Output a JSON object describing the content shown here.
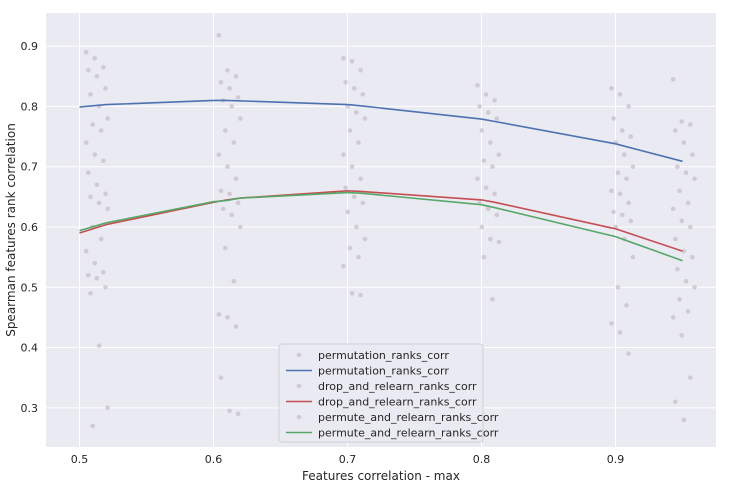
{
  "chart_data": {
    "type": "line",
    "title": "",
    "xlabel": "Features correlation - max",
    "ylabel": "Spearman features rank correlation",
    "xlim": [
      0.475,
      0.975
    ],
    "ylim": [
      0.235,
      0.955
    ],
    "xticks": [
      0.5,
      0.6,
      0.7,
      0.8,
      0.9
    ],
    "yticks": [
      0.3,
      0.4,
      0.5,
      0.6,
      0.7,
      0.8,
      0.9
    ],
    "xtick_labels": [
      "0.5",
      "0.6",
      "0.7",
      "0.8",
      "0.9"
    ],
    "ytick_labels": [
      "0.3",
      "0.4",
      "0.5",
      "0.6",
      "0.7",
      "0.8",
      "0.9"
    ],
    "grid": true,
    "legend_position": "lower center",
    "colors": {
      "background": "#EAEAF2",
      "grid": "#FFFFFF",
      "scatter": "#C8BFCB",
      "permutation": "#4C72B0",
      "drop_and_relearn": "#C44E52",
      "permute_and_relearn": "#55A868"
    },
    "series": [
      {
        "name": "permutation_ranks_corr",
        "kind": "line",
        "color_key": "permutation",
        "x": [
          0.5,
          0.52,
          0.6,
          0.61,
          0.7,
          0.71,
          0.8,
          0.81,
          0.9,
          0.95
        ],
        "y": [
          0.799,
          0.803,
          0.81,
          0.81,
          0.803,
          0.801,
          0.779,
          0.775,
          0.738,
          0.709
        ]
      },
      {
        "name": "drop_and_relearn_ranks_corr",
        "kind": "line",
        "color_key": "drop_and_relearn",
        "x": [
          0.5,
          0.52,
          0.6,
          0.61,
          0.62,
          0.7,
          0.71,
          0.8,
          0.81,
          0.9,
          0.95
        ],
        "y": [
          0.59,
          0.604,
          0.641,
          0.645,
          0.648,
          0.66,
          0.659,
          0.645,
          0.641,
          0.597,
          0.56
        ]
      },
      {
        "name": "permute_and_relearn_ranks_corr",
        "kind": "line",
        "color_key": "permute_and_relearn",
        "x": [
          0.5,
          0.52,
          0.6,
          0.61,
          0.62,
          0.7,
          0.71,
          0.8,
          0.81,
          0.9,
          0.95
        ],
        "y": [
          0.594,
          0.607,
          0.642,
          0.644,
          0.648,
          0.657,
          0.656,
          0.637,
          0.632,
          0.584,
          0.544
        ]
      }
    ],
    "scatter_groups": [
      {
        "x_center": 0.513,
        "y": [
          0.89,
          0.88,
          0.865,
          0.86,
          0.85,
          0.83,
          0.82,
          0.8,
          0.78,
          0.77,
          0.76,
          0.74,
          0.72,
          0.71,
          0.69,
          0.67,
          0.655,
          0.65,
          0.64,
          0.63,
          0.6,
          0.58,
          0.56,
          0.54,
          0.525,
          0.52,
          0.515,
          0.5,
          0.49,
          0.403,
          0.3,
          0.27
        ]
      },
      {
        "x_center": 0.612,
        "y": [
          0.918,
          0.86,
          0.85,
          0.84,
          0.83,
          0.815,
          0.81,
          0.8,
          0.78,
          0.76,
          0.74,
          0.72,
          0.7,
          0.68,
          0.66,
          0.655,
          0.64,
          0.63,
          0.62,
          0.6,
          0.565,
          0.51,
          0.455,
          0.45,
          0.435,
          0.35,
          0.295,
          0.29
        ]
      },
      {
        "x_center": 0.705,
        "y": [
          0.88,
          0.875,
          0.86,
          0.84,
          0.83,
          0.82,
          0.8,
          0.79,
          0.78,
          0.76,
          0.74,
          0.72,
          0.7,
          0.68,
          0.665,
          0.65,
          0.64,
          0.625,
          0.6,
          0.58,
          0.565,
          0.55,
          0.535,
          0.49,
          0.487
        ]
      },
      {
        "x_center": 0.805,
        "y": [
          0.835,
          0.82,
          0.81,
          0.8,
          0.79,
          0.78,
          0.76,
          0.74,
          0.72,
          0.71,
          0.7,
          0.68,
          0.665,
          0.655,
          0.64,
          0.63,
          0.62,
          0.6,
          0.58,
          0.575,
          0.55,
          0.48
        ]
      },
      {
        "x_center": 0.905,
        "y": [
          0.83,
          0.82,
          0.8,
          0.78,
          0.76,
          0.75,
          0.74,
          0.72,
          0.7,
          0.69,
          0.68,
          0.66,
          0.655,
          0.64,
          0.625,
          0.62,
          0.61,
          0.6,
          0.58,
          0.55,
          0.5,
          0.47,
          0.44,
          0.425,
          0.39
        ]
      },
      {
        "x_center": 0.951,
        "y": [
          0.845,
          0.775,
          0.77,
          0.76,
          0.74,
          0.72,
          0.7,
          0.69,
          0.68,
          0.66,
          0.64,
          0.63,
          0.61,
          0.6,
          0.58,
          0.56,
          0.55,
          0.53,
          0.51,
          0.5,
          0.48,
          0.46,
          0.45,
          0.42,
          0.35,
          0.31,
          0.28
        ]
      }
    ],
    "legend": [
      {
        "label": "permutation_ranks_corr",
        "kind": "marker",
        "color_key": "scatter"
      },
      {
        "label": "permutation_ranks_corr",
        "kind": "line",
        "color_key": "permutation"
      },
      {
        "label": "drop_and_relearn_ranks_corr",
        "kind": "marker",
        "color_key": "scatter"
      },
      {
        "label": "drop_and_relearn_ranks_corr",
        "kind": "line",
        "color_key": "drop_and_relearn"
      },
      {
        "label": "permute_and_relearn_ranks_corr",
        "kind": "marker",
        "color_key": "scatter"
      },
      {
        "label": "permute_and_relearn_ranks_corr",
        "kind": "line",
        "color_key": "permute_and_relearn"
      }
    ]
  }
}
